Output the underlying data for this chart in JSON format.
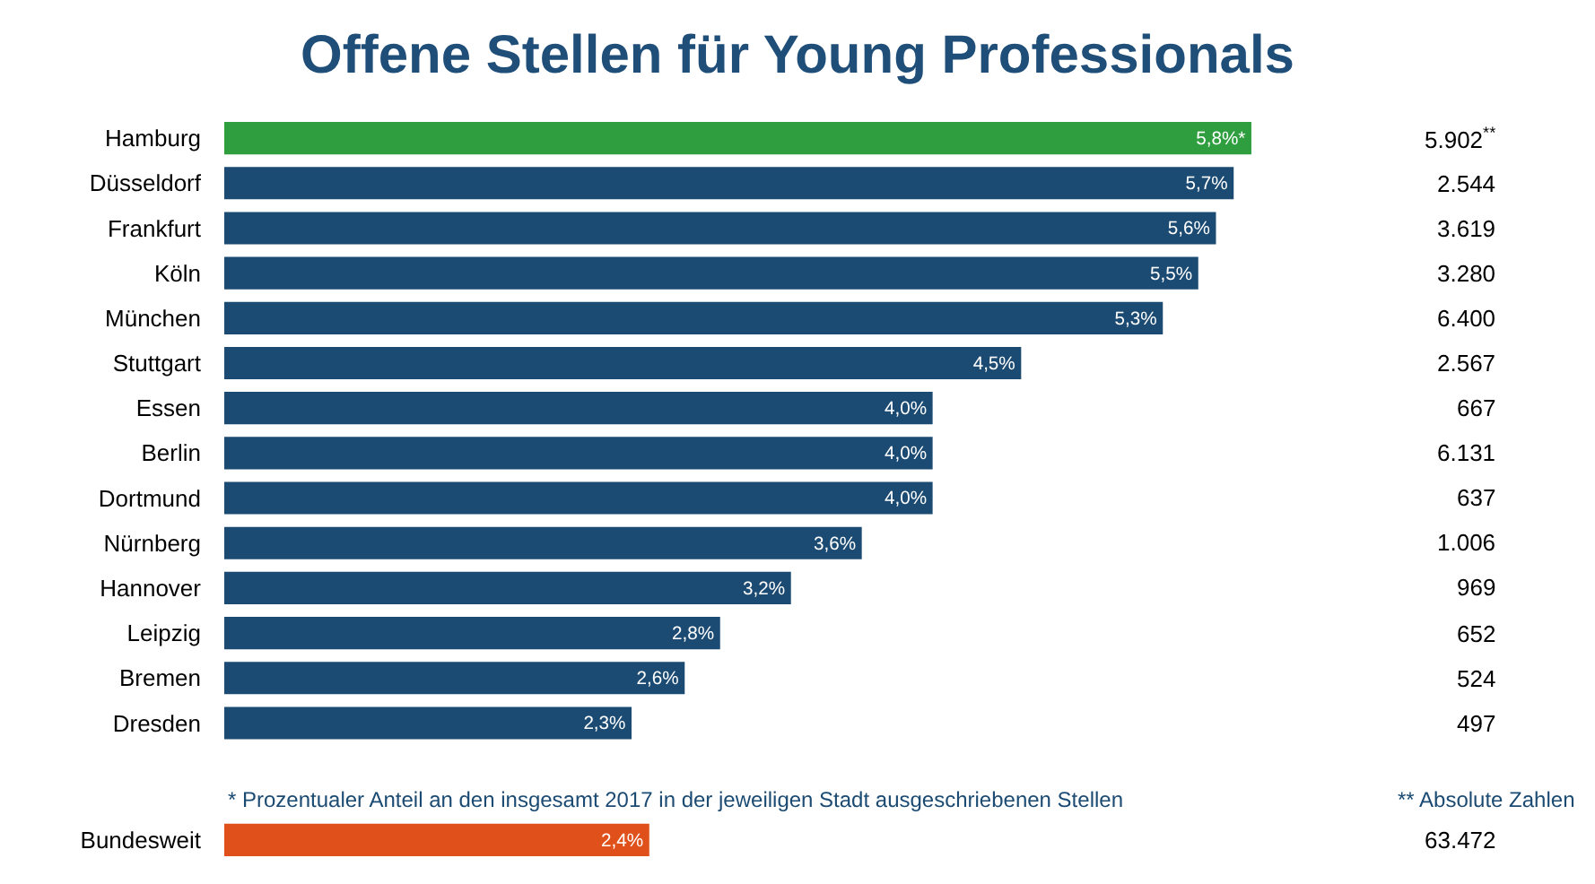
{
  "chart_data": {
    "type": "bar",
    "orientation": "horizontal",
    "title": "Offene Stellen für Young Professionals",
    "categories": [
      "Hamburg",
      "Düsseldorf",
      "Frankfurt",
      "Köln",
      "München",
      "Stuttgart",
      "Essen",
      "Berlin",
      "Dortmund",
      "Nürnberg",
      "Hannover",
      "Leipzig",
      "Bremen",
      "Dresden",
      "Bundesweit"
    ],
    "values": [
      5.8,
      5.7,
      5.6,
      5.5,
      5.3,
      4.5,
      4.0,
      4.0,
      4.0,
      3.6,
      3.2,
      2.8,
      2.6,
      2.3,
      2.4
    ],
    "colors": [
      "#2e9e3e",
      "#1b4a72",
      "#1b4a72",
      "#1b4a72",
      "#1b4a72",
      "#1b4a72",
      "#1b4a72",
      "#1b4a72",
      "#1b4a72",
      "#1b4a72",
      "#1b4a72",
      "#1b4a72",
      "#1b4a72",
      "#1b4a72",
      "#e0501a"
    ],
    "value_labels": [
      "5,8%*",
      "5,7%",
      "5,6%",
      "5,5%",
      "5,3%",
      "4,5%",
      "4,0%",
      "4,0%",
      "4,0%",
      "3,6%",
      "3,2%",
      "2,8%",
      "2,6%",
      "2,3%",
      "2,4%"
    ],
    "annotations": [
      "5.902$^{**}$",
      "2.544",
      "3.619",
      "3.280",
      "6.400",
      "2.567",
      "667",
      "6.131",
      "637",
      "1.006",
      "969",
      "652",
      "524",
      "497",
      "63.472",
      "* Prozentualer Anteil an den insgesamt 2017 in der jeweiligen Stadt ausgeschriebenen Stellen",
      "** Absolute Zahlen"
    ],
    "legend": false,
    "tick_labels": "y"
  }
}
